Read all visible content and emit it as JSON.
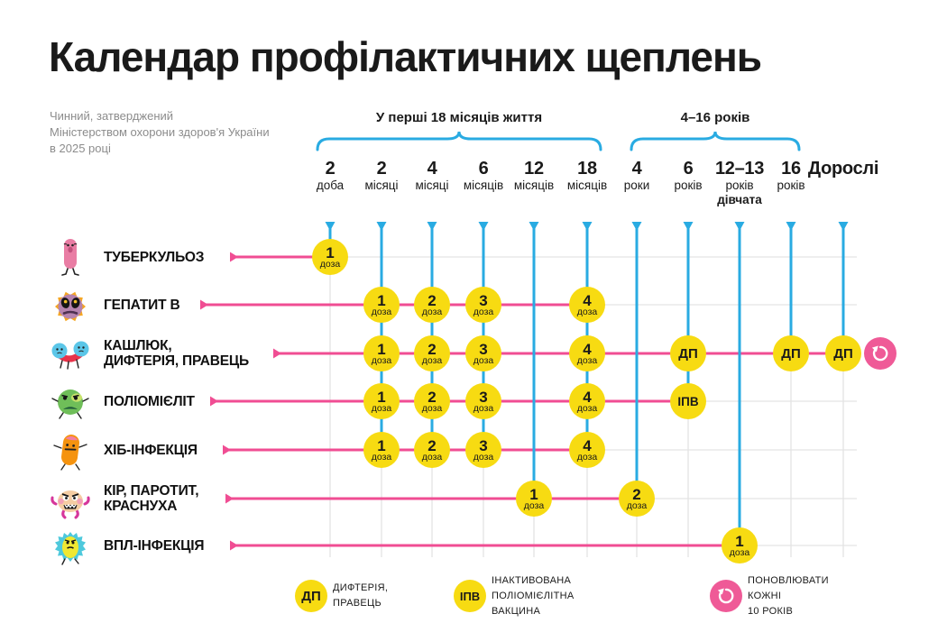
{
  "title": "Календар профілактичних щеплень",
  "subtitle": "Чинний, затверджений\nМіністерством охорони здоров'я України\nв 2025 році",
  "colors": {
    "pink": "#F04D93",
    "blue": "#29ABE2",
    "yellow": "#F7DB12",
    "text": "#1A1A1A",
    "muted": "#8C8C8C",
    "grid": "#E3E3E3",
    "white": "#FFFFFF"
  },
  "chart_data": {
    "type": "table",
    "title": "Календар профілактичних щеплень",
    "age_groups": [
      {
        "label": "У перші 18 місяців життя",
        "col_start": 0,
        "col_end": 5
      },
      {
        "label": "4–16 років",
        "col_start": 6,
        "col_end": 9
      }
    ],
    "columns": [
      {
        "value": "2",
        "unit": "доба"
      },
      {
        "value": "2",
        "unit": "місяці"
      },
      {
        "value": "4",
        "unit": "місяці"
      },
      {
        "value": "6",
        "unit": "місяців"
      },
      {
        "value": "12",
        "unit": "місяців"
      },
      {
        "value": "18",
        "unit": "місяців"
      },
      {
        "value": "4",
        "unit": "роки"
      },
      {
        "value": "6",
        "unit": "років"
      },
      {
        "value": "12–13",
        "unit": "років",
        "note": "дівчата"
      },
      {
        "value": "16",
        "unit": "років"
      },
      {
        "value": "Дорослі",
        "unit": ""
      }
    ],
    "rows": [
      {
        "disease": "ТУБЕРКУЛЬОЗ",
        "icon": "tuberculosis-microbe-icon",
        "marks": [
          {
            "col": 0,
            "label": "1",
            "sub": "доза"
          }
        ]
      },
      {
        "disease": "ГЕПАТИТ В",
        "icon": "hepatitis-b-microbe-icon",
        "marks": [
          {
            "col": 1,
            "label": "1",
            "sub": "доза"
          },
          {
            "col": 2,
            "label": "2",
            "sub": "доза"
          },
          {
            "col": 3,
            "label": "3",
            "sub": "доза"
          },
          {
            "col": 5,
            "label": "4",
            "sub": "доза"
          }
        ]
      },
      {
        "disease": "КАШЛЮК,\nДИФТЕРІЯ, ПРАВЕЦЬ",
        "icon": "pertussis-microbe-icon",
        "renew_every_10_years": true,
        "marks": [
          {
            "col": 1,
            "label": "1",
            "sub": "доза"
          },
          {
            "col": 2,
            "label": "2",
            "sub": "доза"
          },
          {
            "col": 3,
            "label": "3",
            "sub": "доза"
          },
          {
            "col": 5,
            "label": "4",
            "sub": "доза"
          },
          {
            "col": 7,
            "label": "ДП"
          },
          {
            "col": 9,
            "label": "ДП"
          },
          {
            "col": 10,
            "label": "ДП"
          }
        ]
      },
      {
        "disease": "ПОЛІОМІЄЛІТ",
        "icon": "polio-microbe-icon",
        "marks": [
          {
            "col": 1,
            "label": "1",
            "sub": "доза"
          },
          {
            "col": 2,
            "label": "2",
            "sub": "доза"
          },
          {
            "col": 3,
            "label": "3",
            "sub": "доза"
          },
          {
            "col": 5,
            "label": "4",
            "sub": "доза"
          },
          {
            "col": 7,
            "label": "ІПВ"
          }
        ]
      },
      {
        "disease": "ХІБ-ІНФЕКЦІЯ",
        "icon": "hib-microbe-icon",
        "marks": [
          {
            "col": 1,
            "label": "1",
            "sub": "доза"
          },
          {
            "col": 2,
            "label": "2",
            "sub": "доза"
          },
          {
            "col": 3,
            "label": "3",
            "sub": "доза"
          },
          {
            "col": 5,
            "label": "4",
            "sub": "доза"
          }
        ]
      },
      {
        "disease": "КІР, ПАРОТИТ,\nКРАСНУХА",
        "icon": "measles-microbe-icon",
        "marks": [
          {
            "col": 4,
            "label": "1",
            "sub": "доза"
          },
          {
            "col": 6,
            "label": "2",
            "sub": "доза"
          }
        ]
      },
      {
        "disease": "ВПЛ-ІНФЕКЦІЯ",
        "icon": "hpv-microbe-icon",
        "marks": [
          {
            "col": 8,
            "label": "1",
            "sub": "доза"
          }
        ]
      }
    ],
    "legend": [
      {
        "symbol": "ДП",
        "label": "ДИФТЕРІЯ, ПРАВЕЦЬ"
      },
      {
        "symbol": "ІПВ",
        "label": "ІНАКТИВОВАНА ПОЛІОМІЄЛІТНА ВАКЦИНА"
      },
      {
        "symbol": "renew-icon",
        "label": "ПОНОВЛЮВАТИ КОЖНІ\n10 РОКІВ"
      }
    ]
  }
}
